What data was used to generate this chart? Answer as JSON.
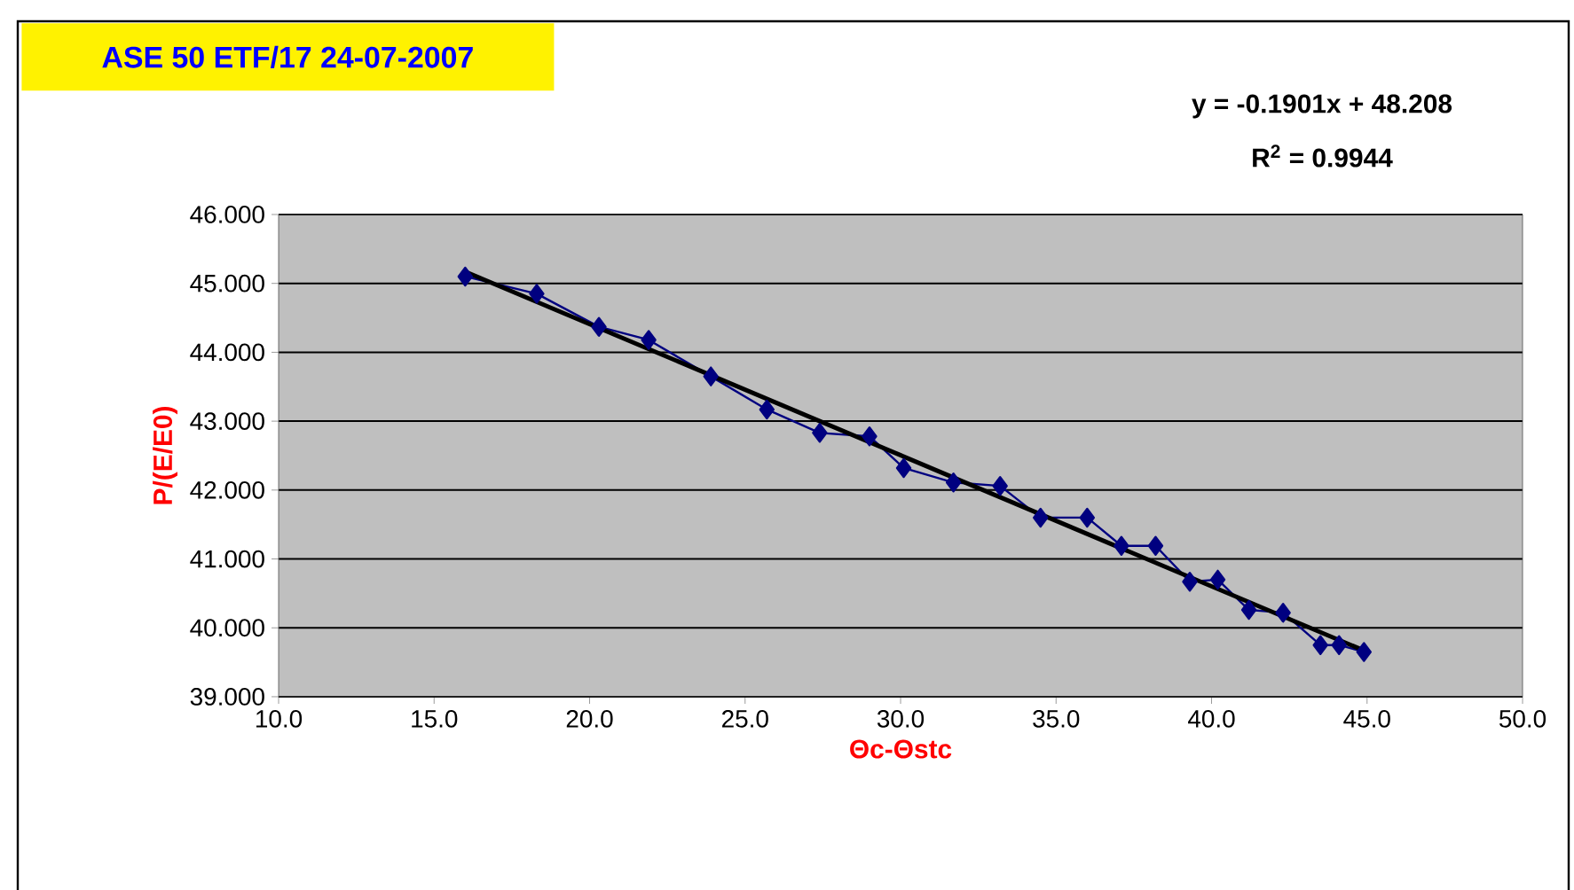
{
  "chart_data": {
    "type": "line",
    "title": "ASE 50 ETF/17 24-07-2007",
    "xlabel": "Θc-Θstc",
    "ylabel": "P/(E/E0)",
    "annotations": [
      "y = -0.1901x + 48.208",
      "R$^{2}$ = 0.9944"
    ],
    "xlim": [
      10,
      50
    ],
    "ylim": [
      39,
      46
    ],
    "xticks": [
      {
        "value": 10,
        "label": "10.0"
      },
      {
        "value": 15,
        "label": "15.0"
      },
      {
        "value": 20,
        "label": "20.0"
      },
      {
        "value": 25,
        "label": "25.0"
      },
      {
        "value": 30,
        "label": "30.0"
      },
      {
        "value": 35,
        "label": "35.0"
      },
      {
        "value": 40,
        "label": "40.0"
      },
      {
        "value": 45,
        "label": "45.0"
      },
      {
        "value": 50,
        "label": "50.0"
      }
    ],
    "yticks": [
      {
        "value": 39,
        "label": "39.000"
      },
      {
        "value": 40,
        "label": "40.000"
      },
      {
        "value": 41,
        "label": "41.000"
      },
      {
        "value": 42,
        "label": "42.000"
      },
      {
        "value": 43,
        "label": "43.000"
      },
      {
        "value": 44,
        "label": "44.000"
      },
      {
        "value": 45,
        "label": "45.000"
      },
      {
        "value": 46,
        "label": "46.000"
      }
    ],
    "grid": "y",
    "series": [
      {
        "type": "line",
        "color": "#000080",
        "marker": "diamond",
        "x": [
          16.0,
          18.3,
          20.3,
          21.9,
          23.9,
          25.7,
          27.4,
          29.0,
          30.1,
          31.7,
          33.2,
          34.5,
          36.0,
          37.1,
          38.2,
          39.3,
          40.2,
          41.2,
          42.3,
          43.5,
          44.1,
          44.9
        ],
        "values": [
          45.1,
          44.85,
          44.37,
          44.18,
          43.65,
          43.17,
          42.83,
          42.78,
          42.32,
          42.11,
          42.06,
          41.6,
          41.6,
          41.19,
          41.19,
          40.67,
          40.7,
          40.26,
          40.22,
          39.75,
          39.75,
          39.65
        ]
      },
      {
        "type": "line",
        "color": "#000000",
        "marker": "none",
        "x": [
          16.0,
          44.9
        ],
        "values": [
          45.17,
          39.67
        ]
      }
    ]
  }
}
